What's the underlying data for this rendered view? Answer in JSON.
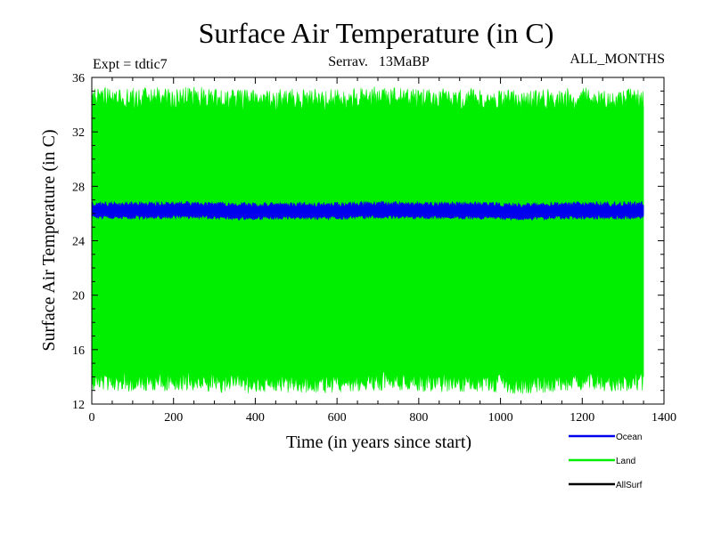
{
  "chart_data": {
    "type": "line",
    "title": "Surface Air Temperature (in C)",
    "subtitle_left": "Expt = tdtic7",
    "subtitle_center": "Serrav.   13MaBP",
    "subtitle_right": "ALL_MONTHS",
    "xlabel": "Time (in years since start)",
    "ylabel": "Surface Air Temperature (in C)",
    "xlim": [
      0,
      1400
    ],
    "ylim": [
      12,
      36
    ],
    "x_ticks": [
      0,
      200,
      400,
      600,
      800,
      1000,
      1200,
      1400
    ],
    "y_ticks": [
      12,
      16,
      20,
      24,
      28,
      32,
      36
    ],
    "x_tick_labels": [
      "0",
      "200",
      "400",
      "600",
      "800",
      "1000",
      "1200",
      "1400"
    ],
    "y_tick_labels": [
      "12",
      "16",
      "20",
      "24",
      "28",
      "32",
      "36"
    ],
    "x_data_range": [
      0,
      1350
    ],
    "series": [
      {
        "name": "Land",
        "color": "#00ee00",
        "description": "monthly values oscillating between ~13.5 and ~34.5",
        "min": 13.5,
        "max": 34.5,
        "mean": 24.0
      },
      {
        "name": "Ocean",
        "color": "#0000ee",
        "description": "monthly values oscillating between ~25.7 and ~26.7",
        "min": 25.7,
        "max": 26.7,
        "mean": 26.2
      },
      {
        "name": "AllSurf",
        "color": "#000000",
        "description": "legend entry only; not visible in plot",
        "min": null,
        "max": null,
        "mean": null
      }
    ],
    "legend": [
      {
        "label": "Ocean",
        "color": "#0000ee"
      },
      {
        "label": "Land",
        "color": "#00ee00"
      },
      {
        "label": "AllSurf",
        "color": "#000000"
      }
    ],
    "legend_position": "bottom-right"
  }
}
